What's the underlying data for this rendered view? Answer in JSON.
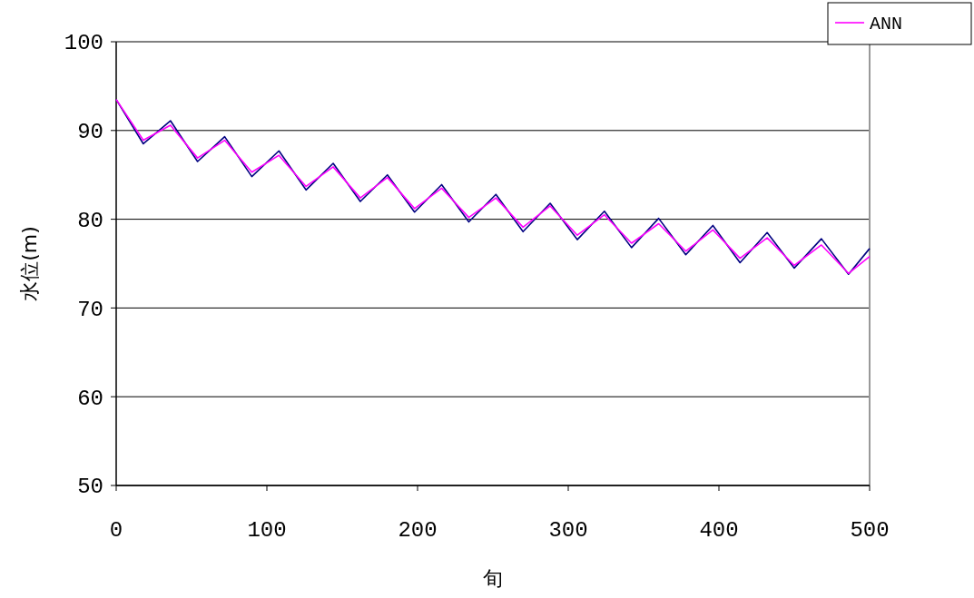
{
  "chart_data": {
    "type": "line",
    "xlabel": "旬",
    "ylabel": "水位(m)",
    "xlim": [
      0,
      500
    ],
    "ylim": [
      50,
      100
    ],
    "xticks": [
      0,
      100,
      200,
      300,
      400,
      500
    ],
    "yticks": [
      50,
      60,
      70,
      80,
      90,
      100
    ],
    "grid": "y",
    "legend": "top right",
    "marker": "none",
    "line_style": "solid",
    "x": [
      0,
      18,
      36,
      54,
      72,
      90,
      108,
      126,
      144,
      162,
      180,
      198,
      216,
      234,
      252,
      270,
      288,
      306,
      324,
      342,
      360,
      378,
      396,
      414,
      432,
      450,
      468,
      486,
      500
    ],
    "series": [
      {
        "color": "#000080",
        "values": [
          93.5,
          88.5,
          91.1,
          86.5,
          89.3,
          84.8,
          87.7,
          83.3,
          86.3,
          82.0,
          85.0,
          80.8,
          83.9,
          79.7,
          82.8,
          78.6,
          81.8,
          77.7,
          80.9,
          76.8,
          80.1,
          76.0,
          79.3,
          75.1,
          78.5,
          74.5,
          77.8,
          73.8,
          76.7
        ]
      },
      {
        "name": "ANN",
        "color": "#ff00ff",
        "values": [
          93.5,
          88.9,
          90.6,
          86.9,
          88.9,
          85.3,
          87.2,
          83.7,
          85.9,
          82.4,
          84.7,
          81.2,
          83.5,
          80.2,
          82.4,
          79.1,
          81.5,
          78.2,
          80.5,
          77.3,
          79.5,
          76.4,
          78.8,
          75.6,
          77.9,
          74.8,
          77.1,
          73.9,
          75.8
        ]
      }
    ]
  }
}
